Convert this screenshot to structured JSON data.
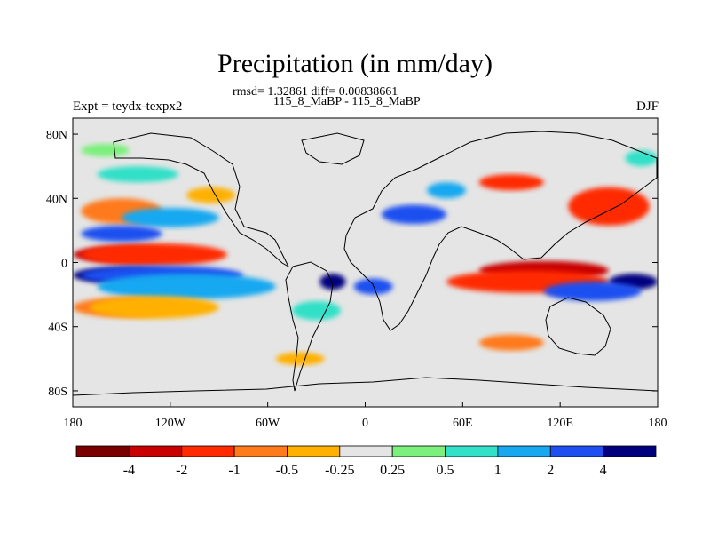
{
  "title": "Precipitation (in mm/day)",
  "stats_line": "rmsd= 1.32861 diff= 0.00838661",
  "comparison": "115_8_MaBP - 115_8_MaBP",
  "experiment": "Expt = teydx-texpx2",
  "season": "DJF",
  "map": {
    "lon_range": [
      -180,
      180
    ],
    "lat_range": [
      -90,
      90
    ],
    "lat_ticks": [
      {
        "value": 80,
        "label": "80N"
      },
      {
        "value": 40,
        "label": "40N"
      },
      {
        "value": 0,
        "label": "0"
      },
      {
        "value": -40,
        "label": "40S"
      },
      {
        "value": -80,
        "label": "80S"
      }
    ],
    "lon_ticks": [
      {
        "value": -180,
        "label": "180"
      },
      {
        "value": -120,
        "label": "120W"
      },
      {
        "value": -60,
        "label": "60W"
      },
      {
        "value": 0,
        "label": "0"
      },
      {
        "value": 60,
        "label": "60E"
      },
      {
        "value": 120,
        "label": "120E"
      },
      {
        "value": 180,
        "label": "180"
      }
    ],
    "background_color": "#e5e5e5"
  },
  "colorbar": {
    "colors": [
      "#7a0000",
      "#c80000",
      "#ff2a00",
      "#ff7a1a",
      "#ffb000",
      "#e5e5e5",
      "#7cf07c",
      "#33e0c8",
      "#17a8f0",
      "#1f4ff0",
      "#00007f"
    ],
    "labels": [
      "-4",
      "-2",
      "-1",
      "-0.5",
      "-0.25",
      "0.25",
      "0.5",
      "1",
      "2",
      "4"
    ]
  },
  "anomalies": [
    {
      "lon": -150,
      "lat": 5,
      "rx": 30,
      "ry": 5,
      "level": 1
    },
    {
      "lon": -130,
      "lat": 5,
      "rx": 45,
      "ry": 7,
      "level": 2
    },
    {
      "lon": -150,
      "lat": -8,
      "rx": 30,
      "ry": 5,
      "level": 10
    },
    {
      "lon": -125,
      "lat": -8,
      "rx": 50,
      "ry": 6,
      "level": 9
    },
    {
      "lon": -110,
      "lat": -15,
      "rx": 55,
      "ry": 8,
      "level": 8
    },
    {
      "lon": -150,
      "lat": -28,
      "rx": 30,
      "ry": 6,
      "level": 3
    },
    {
      "lon": -130,
      "lat": -28,
      "rx": 40,
      "ry": 7,
      "level": 4
    },
    {
      "lon": -150,
      "lat": 32,
      "rx": 25,
      "ry": 8,
      "level": 3
    },
    {
      "lon": -120,
      "lat": 28,
      "rx": 30,
      "ry": 6,
      "level": 8
    },
    {
      "lon": -150,
      "lat": 18,
      "rx": 25,
      "ry": 5,
      "level": 9
    },
    {
      "lon": -140,
      "lat": 55,
      "rx": 25,
      "ry": 5,
      "level": 7
    },
    {
      "lon": -95,
      "lat": 42,
      "rx": 15,
      "ry": 5,
      "level": 4
    },
    {
      "lon": -20,
      "lat": -12,
      "rx": 8,
      "ry": 5,
      "level": 10
    },
    {
      "lon": 5,
      "lat": -15,
      "rx": 12,
      "ry": 5,
      "level": 9
    },
    {
      "lon": -30,
      "lat": -30,
      "rx": 15,
      "ry": 6,
      "level": 7
    },
    {
      "lon": 110,
      "lat": -5,
      "rx": 40,
      "ry": 6,
      "level": 1
    },
    {
      "lon": 100,
      "lat": -12,
      "rx": 50,
      "ry": 7,
      "level": 2
    },
    {
      "lon": 165,
      "lat": -12,
      "rx": 15,
      "ry": 5,
      "level": 10
    },
    {
      "lon": 140,
      "lat": -18,
      "rx": 30,
      "ry": 6,
      "level": 9
    },
    {
      "lon": 150,
      "lat": 35,
      "rx": 25,
      "ry": 12,
      "level": 2
    },
    {
      "lon": 90,
      "lat": 50,
      "rx": 20,
      "ry": 5,
      "level": 2
    },
    {
      "lon": 50,
      "lat": 45,
      "rx": 12,
      "ry": 5,
      "level": 8
    },
    {
      "lon": 90,
      "lat": -50,
      "rx": 20,
      "ry": 5,
      "level": 3
    },
    {
      "lon": -40,
      "lat": -60,
      "rx": 15,
      "ry": 4,
      "level": 4
    },
    {
      "lon": 30,
      "lat": 30,
      "rx": 20,
      "ry": 6,
      "level": 9
    },
    {
      "lon": -160,
      "lat": 70,
      "rx": 15,
      "ry": 4,
      "level": 6
    },
    {
      "lon": 170,
      "lat": 65,
      "rx": 10,
      "ry": 5,
      "level": 7
    }
  ]
}
